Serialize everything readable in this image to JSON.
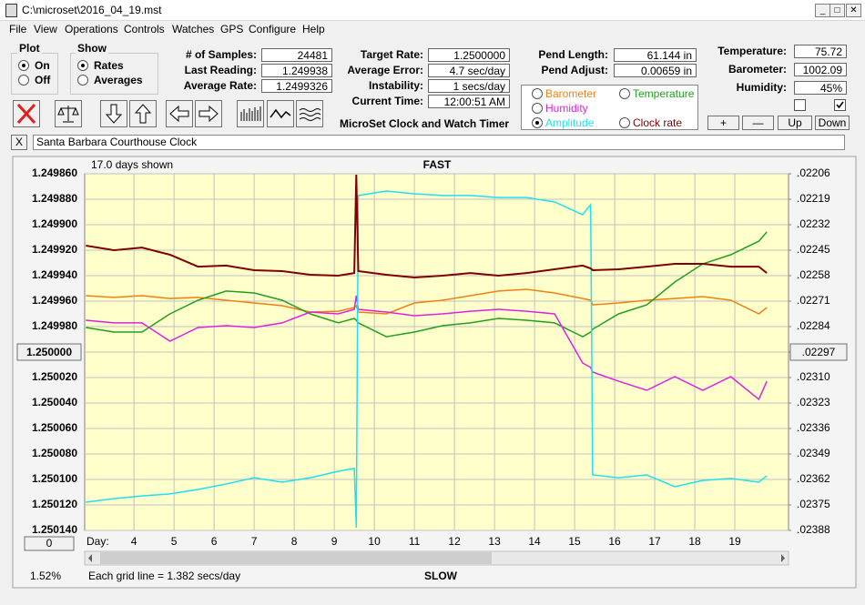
{
  "window": {
    "title": "C:\\microset\\2016_04_19.mst"
  },
  "menu": [
    "File",
    "View",
    "Operations",
    "Controls",
    "Watches",
    "GPS",
    "Configure",
    "Help"
  ],
  "plot_group": {
    "label": "Plot",
    "options": [
      "On",
      "Off"
    ],
    "selected": 0
  },
  "show_group": {
    "label": "Show",
    "options": [
      "Rates",
      "Averages"
    ],
    "selected": 0
  },
  "fields": [
    {
      "label": "# of Samples:",
      "value": "24481"
    },
    {
      "label": "Last Reading:",
      "value": "1.249938"
    },
    {
      "label": "Average Rate:",
      "value": "1.2499326"
    },
    {
      "label": "Target Rate:",
      "value": "1.2500000"
    },
    {
      "label": "Average Error:",
      "value": "4.7 sec/day"
    },
    {
      "label": "Instability:",
      "value": "1 secs/day"
    },
    {
      "label": "Current Time:",
      "value": "12:00:51 AM"
    },
    {
      "label": "Pend Length:",
      "value": "61.144 in"
    },
    {
      "label": "Pend Adjust:",
      "value": "0.00659 in"
    },
    {
      "label": "Temperature:",
      "value": "75.72"
    },
    {
      "label": "Barometer:",
      "value": "1002.09"
    },
    {
      "label": "Humidity:",
      "value": "45%"
    }
  ],
  "app_caption": "MicroSet Clock and Watch Timer",
  "checkboxes": [
    false,
    true
  ],
  "buttons": [
    "+",
    "—",
    "Up",
    "Down"
  ],
  "close_button": "X",
  "clock_name": "Santa Barbara Courthouse Clock",
  "chart_data": {
    "type": "line",
    "days_shown": "17.0 days shown",
    "top_label": "FAST",
    "bottom_label": "SLOW",
    "grid_note": "Each grid line = 1.382 secs/day",
    "percent": "1.52%",
    "offset_button": "0",
    "x_label": "Day:",
    "legend_selected": 3,
    "grid": true,
    "y_inverted": true,
    "xlim": [
      2.77,
      20.34
    ],
    "xticks": [
      4,
      5,
      6,
      7,
      8,
      9,
      10,
      11,
      12,
      13,
      14,
      15,
      16,
      17,
      18,
      19
    ],
    "ylim": [
      1.24986,
      1.25014
    ],
    "yticks": [
      {
        "value": 1.24986,
        "label": "1.249860"
      },
      {
        "value": 1.24988,
        "label": "1.249880"
      },
      {
        "value": 1.2499,
        "label": "1.249900"
      },
      {
        "value": 1.24992,
        "label": "1.249920"
      },
      {
        "value": 1.24994,
        "label": "1.249940"
      },
      {
        "value": 1.24996,
        "label": "1.249960"
      },
      {
        "value": 1.24998,
        "label": "1.249980"
      },
      {
        "value": 1.25,
        "label": "1.250000"
      },
      {
        "value": 1.25002,
        "label": "1.250020"
      },
      {
        "value": 1.25004,
        "label": "1.250040"
      },
      {
        "value": 1.25006,
        "label": "1.250060"
      },
      {
        "value": 1.25008,
        "label": "1.250080"
      },
      {
        "value": 1.2501,
        "label": "1.250100"
      },
      {
        "value": 1.25012,
        "label": "1.250120"
      },
      {
        "value": 1.25014,
        "label": "1.250140"
      }
    ],
    "y2lim": [
      0.02206,
      0.02388
    ],
    "y2ticks": [
      {
        "value": 0.02206,
        "label": ".02206"
      },
      {
        "value": 0.02219,
        "label": ".02219"
      },
      {
        "value": 0.02232,
        "label": ".02232"
      },
      {
        "value": 0.02245,
        "label": ".02245"
      },
      {
        "value": 0.02258,
        "label": ".02258"
      },
      {
        "value": 0.02271,
        "label": ".02271"
      },
      {
        "value": 0.02284,
        "label": ".02284"
      },
      {
        "value": 0.02297,
        "label": ".02297"
      },
      {
        "value": 0.0231,
        "label": ".02310"
      },
      {
        "value": 0.02323,
        "label": ".02323"
      },
      {
        "value": 0.02336,
        "label": ".02336"
      },
      {
        "value": 0.02349,
        "label": ".02349"
      },
      {
        "value": 0.02362,
        "label": ".02362"
      },
      {
        "value": 0.02375,
        "label": ".02375"
      },
      {
        "value": 0.02388,
        "label": ".02388"
      }
    ],
    "x": [
      2.8,
      3.5,
      4.2,
      4.9,
      5.6,
      6.3,
      7.0,
      7.7,
      8.4,
      9.1,
      9.5,
      9.55,
      9.6,
      10.3,
      11.0,
      11.7,
      12.4,
      13.1,
      13.8,
      14.5,
      15.2,
      15.4,
      15.45,
      16.1,
      16.8,
      17.5,
      18.2,
      18.9,
      19.6,
      19.8
    ],
    "series": [
      {
        "name": "Barometer",
        "color": "#f08010",
        "values": [
          1.2499557,
          1.2499571,
          1.2499557,
          1.2499579,
          1.2499571,
          1.2499593,
          1.2499614,
          1.2499636,
          1.2499686,
          1.2499679,
          1.249965,
          1.2499636,
          1.2499686,
          1.24997,
          1.2499614,
          1.2499593,
          1.2499557,
          1.2499521,
          1.2499507,
          1.2499536,
          1.2499579,
          1.2499593,
          1.2499629,
          1.2499614,
          1.2499593,
          1.2499579,
          1.2499564,
          1.2499593,
          1.24997,
          1.249965
        ]
      },
      {
        "name": "Temperature",
        "color": "#20a020",
        "values": [
          1.2499807,
          1.2499843,
          1.2499843,
          1.24997,
          1.2499593,
          1.2499521,
          1.2499536,
          1.2499593,
          1.24997,
          1.2499771,
          1.2499736,
          1.249975,
          1.2499771,
          1.2499879,
          1.2499843,
          1.2499793,
          1.2499771,
          1.2499736,
          1.249975,
          1.2499771,
          1.2499879,
          1.2499843,
          1.2499821,
          1.24997,
          1.2499629,
          1.249945,
          1.2499307,
          1.2499236,
          1.2499129,
          1.2499057
        ]
      },
      {
        "name": "Humidity",
        "color": "#e020e0",
        "values": [
          1.249975,
          1.2499771,
          1.2499771,
          1.2499914,
          1.2499807,
          1.2499793,
          1.2499807,
          1.2499771,
          1.2499686,
          1.24997,
          1.2499664,
          1.2499557,
          1.2499664,
          1.2499686,
          1.2499714,
          1.24997,
          1.2499679,
          1.2499664,
          1.2499679,
          1.24997,
          1.2500086,
          1.2500121,
          1.2500157,
          1.2500229,
          1.25003,
          1.2500193,
          1.25003,
          1.2500193,
          1.2500371,
          1.2500229
        ]
      },
      {
        "name": "Amplitude",
        "color": "#20e0f0",
        "axis": "y2",
        "values": [
          0.023736,
          0.023718,
          0.023704,
          0.023694,
          0.023671,
          0.023643,
          0.023611,
          0.023634,
          0.023611,
          0.023578,
          0.023564,
          0.023866,
          0.022171,
          0.022148,
          0.022162,
          0.022171,
          0.022171,
          0.022181,
          0.022181,
          0.022204,
          0.022269,
          0.022218,
          0.023597,
          0.023611,
          0.023597,
          0.023657,
          0.023625,
          0.023615,
          0.023634,
          0.023601
        ]
      },
      {
        "name": "Clock rate",
        "color": "#800000",
        "values": [
          1.2499164,
          1.24992,
          1.2499179,
          1.2499236,
          1.2499329,
          1.2499321,
          1.2499357,
          1.2499364,
          1.2499393,
          1.24994,
          1.2499379,
          1.2498607,
          1.2499364,
          1.2499393,
          1.2499414,
          1.24994,
          1.2499379,
          1.24994,
          1.2499379,
          1.249935,
          1.2499321,
          1.2499343,
          1.2499357,
          1.249935,
          1.2499329,
          1.2499307,
          1.2499307,
          1.2499329,
          1.2499329,
          1.2499379
        ]
      }
    ]
  }
}
